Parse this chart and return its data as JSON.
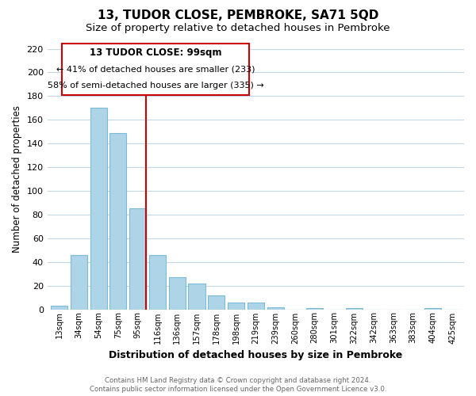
{
  "title": "13, TUDOR CLOSE, PEMBROKE, SA71 5QD",
  "subtitle": "Size of property relative to detached houses in Pembroke",
  "xlabel": "Distribution of detached houses by size in Pembroke",
  "ylabel": "Number of detached properties",
  "bar_labels": [
    "13sqm",
    "34sqm",
    "54sqm",
    "75sqm",
    "95sqm",
    "116sqm",
    "136sqm",
    "157sqm",
    "178sqm",
    "198sqm",
    "219sqm",
    "239sqm",
    "260sqm",
    "280sqm",
    "301sqm",
    "322sqm",
    "342sqm",
    "363sqm",
    "383sqm",
    "404sqm",
    "425sqm"
  ],
  "bar_values": [
    3,
    46,
    170,
    149,
    85,
    46,
    27,
    22,
    12,
    6,
    6,
    2,
    0,
    1,
    0,
    1,
    0,
    0,
    0,
    1,
    0
  ],
  "bar_color": "#aed4e8",
  "bar_edge_color": "#7bbcd5",
  "vline_index": 4,
  "vline_color": "#cc0000",
  "annotation_title": "13 TUDOR CLOSE: 99sqm",
  "annotation_line1": "← 41% of detached houses are smaller (233)",
  "annotation_line2": "58% of semi-detached houses are larger (335) →",
  "annotation_box_facecolor": "#ffffff",
  "annotation_box_edgecolor": "#cc0000",
  "ylim": [
    0,
    220
  ],
  "yticks": [
    0,
    20,
    40,
    60,
    80,
    100,
    120,
    140,
    160,
    180,
    200,
    220
  ],
  "footer_line1": "Contains HM Land Registry data © Crown copyright and database right 2024.",
  "footer_line2": "Contains public sector information licensed under the Open Government Licence v3.0.",
  "bg_color": "#ffffff",
  "grid_color": "#c0d8e8",
  "title_fontsize": 11,
  "subtitle_fontsize": 9.5
}
